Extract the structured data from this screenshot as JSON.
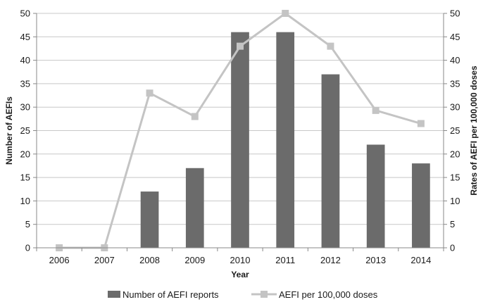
{
  "chart_data": {
    "type": "bar+line",
    "categories": [
      "2006",
      "2007",
      "2008",
      "2009",
      "2010",
      "2011",
      "2012",
      "2013",
      "2014"
    ],
    "series": [
      {
        "name": "Number of AEFI reports",
        "type": "bar",
        "axis": "left",
        "color": "#6b6b6b",
        "values": [
          0,
          0,
          12,
          17,
          46,
          46,
          37,
          22,
          18
        ]
      },
      {
        "name": "AEFI per 100,000 doses",
        "type": "line",
        "axis": "right",
        "color": "#c4c4c4",
        "values": [
          0,
          0,
          33,
          28,
          43,
          50,
          43,
          29.3,
          26.5
        ]
      }
    ],
    "xlabel": "Year",
    "ylabel": "Number of AEFIs",
    "y2label": "Rates of AEFI per 100,000 doses",
    "ylim": [
      0,
      50
    ],
    "y2lim": [
      0,
      50
    ],
    "yticks": [
      "0",
      "5",
      "10",
      "15",
      "20",
      "25",
      "30",
      "35",
      "40",
      "45",
      "50"
    ],
    "y2ticks": [
      "0",
      "5",
      "10",
      "15",
      "20",
      "25",
      "30",
      "35",
      "40",
      "45",
      "50"
    ],
    "grid": "horizontal",
    "legend_position": "bottom"
  }
}
